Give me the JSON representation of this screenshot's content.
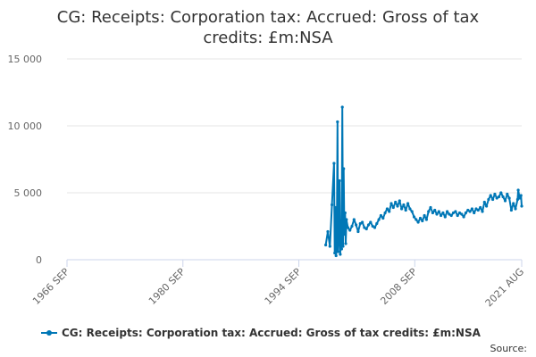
{
  "chart_data": {
    "type": "line",
    "title": "CG: Receipts: Corporation tax: Accrued: Gross of tax credits: £m:NSA",
    "x_ticks": [
      "1966 SEP",
      "1980 SEP",
      "1994 SEP",
      "2008 SEP",
      "2021 AUG"
    ],
    "y_ticks": [
      "0",
      "5 000",
      "10 000",
      "15 000"
    ],
    "ylim": [
      0,
      15000
    ],
    "xlim": [
      "1966-09",
      "2021-08"
    ],
    "grid": "horizontal",
    "legend_position": "bottom",
    "series": [
      {
        "name": "CG: Receipts: Corporation tax: Accrued: Gross of tax credits: £m:NSA",
        "color": "#0077b6",
        "points": [
          [
            "1997-12",
            1100
          ],
          [
            "1998-03",
            2100
          ],
          [
            "1998-06",
            1000
          ],
          [
            "1998-09",
            4100
          ],
          [
            "1998-12",
            7200
          ],
          [
            "1999-01",
            500
          ],
          [
            "1999-02",
            3900
          ],
          [
            "1999-03",
            300
          ],
          [
            "1999-04",
            1200
          ],
          [
            "1999-05",
            10300
          ],
          [
            "1999-06",
            600
          ],
          [
            "1999-07",
            1800
          ],
          [
            "1999-08",
            5900
          ],
          [
            "1999-09",
            400
          ],
          [
            "1999-10",
            2900
          ],
          [
            "1999-11",
            800
          ],
          [
            "1999-12",
            11400
          ],
          [
            "2000-01",
            1000
          ],
          [
            "2000-02",
            6800
          ],
          [
            "2000-03",
            1900
          ],
          [
            "2000-04",
            3500
          ],
          [
            "2000-05",
            1200
          ],
          [
            "2000-06",
            3000
          ],
          [
            "2000-08",
            2400
          ],
          [
            "2000-11",
            2200
          ],
          [
            "2001-02",
            2500
          ],
          [
            "2001-05",
            3000
          ],
          [
            "2001-08",
            2600
          ],
          [
            "2001-11",
            2100
          ],
          [
            "2002-02",
            2700
          ],
          [
            "2002-05",
            2800
          ],
          [
            "2002-08",
            2400
          ],
          [
            "2002-11",
            2300
          ],
          [
            "2003-02",
            2600
          ],
          [
            "2003-05",
            2800
          ],
          [
            "2003-08",
            2500
          ],
          [
            "2003-11",
            2400
          ],
          [
            "2004-02",
            2700
          ],
          [
            "2004-05",
            3000
          ],
          [
            "2004-08",
            3300
          ],
          [
            "2004-11",
            3100
          ],
          [
            "2005-02",
            3500
          ],
          [
            "2005-05",
            3800
          ],
          [
            "2005-08",
            3600
          ],
          [
            "2005-11",
            4200
          ],
          [
            "2006-02",
            3900
          ],
          [
            "2006-05",
            4300
          ],
          [
            "2006-08",
            4000
          ],
          [
            "2006-11",
            4400
          ],
          [
            "2007-02",
            3800
          ],
          [
            "2007-05",
            4100
          ],
          [
            "2007-08",
            3700
          ],
          [
            "2007-11",
            4200
          ],
          [
            "2008-02",
            3800
          ],
          [
            "2008-05",
            3600
          ],
          [
            "2008-08",
            3200
          ],
          [
            "2008-11",
            3000
          ],
          [
            "2009-02",
            2800
          ],
          [
            "2009-05",
            3100
          ],
          [
            "2009-08",
            2900
          ],
          [
            "2009-11",
            3300
          ],
          [
            "2010-02",
            3000
          ],
          [
            "2010-05",
            3600
          ],
          [
            "2010-08",
            3900
          ],
          [
            "2010-11",
            3500
          ],
          [
            "2011-02",
            3700
          ],
          [
            "2011-05",
            3400
          ],
          [
            "2011-08",
            3600
          ],
          [
            "2011-11",
            3300
          ],
          [
            "2012-02",
            3500
          ],
          [
            "2012-05",
            3200
          ],
          [
            "2012-08",
            3600
          ],
          [
            "2012-11",
            3400
          ],
          [
            "2013-02",
            3300
          ],
          [
            "2013-05",
            3500
          ],
          [
            "2013-08",
            3600
          ],
          [
            "2013-11",
            3300
          ],
          [
            "2014-02",
            3500
          ],
          [
            "2014-05",
            3400
          ],
          [
            "2014-08",
            3200
          ],
          [
            "2014-11",
            3500
          ],
          [
            "2015-02",
            3700
          ],
          [
            "2015-05",
            3600
          ],
          [
            "2015-08",
            3800
          ],
          [
            "2015-11",
            3500
          ],
          [
            "2016-02",
            3800
          ],
          [
            "2016-05",
            3700
          ],
          [
            "2016-08",
            3900
          ],
          [
            "2016-11",
            3600
          ],
          [
            "2017-02",
            4300
          ],
          [
            "2017-05",
            4000
          ],
          [
            "2017-08",
            4500
          ],
          [
            "2017-11",
            4800
          ],
          [
            "2018-02",
            4500
          ],
          [
            "2018-05",
            4900
          ],
          [
            "2018-08",
            4600
          ],
          [
            "2018-11",
            4700
          ],
          [
            "2019-02",
            5000
          ],
          [
            "2019-05",
            4700
          ],
          [
            "2019-08",
            4400
          ],
          [
            "2019-11",
            4900
          ],
          [
            "2020-02",
            4600
          ],
          [
            "2020-05",
            3700
          ],
          [
            "2020-08",
            4200
          ],
          [
            "2020-11",
            3800
          ],
          [
            "2021-02",
            4500
          ],
          [
            "2021-03",
            5200
          ],
          [
            "2021-05",
            4600
          ],
          [
            "2021-07",
            4800
          ],
          [
            "2021-08",
            4000
          ]
        ]
      }
    ]
  },
  "legend": {
    "label": "CG: Receipts: Corporation tax: Accrued: Gross of tax credits: £m:NSA"
  },
  "credits": {
    "label": "Source:"
  }
}
